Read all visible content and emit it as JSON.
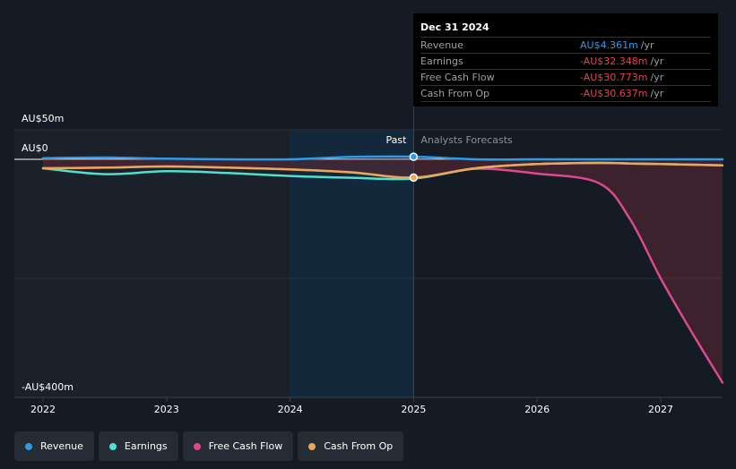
{
  "chart_data": {
    "type": "line",
    "y_axis_labels": [
      "AU$50m",
      "AU$0",
      "-AU$400m"
    ],
    "ylim": [
      -400,
      50
    ],
    "x_ticks": [
      "2022",
      "2023",
      "2024",
      "2025",
      "2026",
      "2027"
    ],
    "region_labels": {
      "past": "Past",
      "forecast": "Analysts Forecasts"
    },
    "divider_x": 2025,
    "x": [
      2022,
      2022.5,
      2023,
      2023.5,
      2024,
      2024.5,
      2025,
      2025.5,
      2026,
      2026.5,
      2026.75,
      2027,
      2027.25,
      2027.5
    ],
    "series": [
      {
        "name": "Revenue",
        "color": "#2f9be8",
        "values": [
          2,
          3,
          1,
          0,
          0,
          4,
          4.361,
          0,
          0,
          0,
          0,
          0,
          0,
          0
        ]
      },
      {
        "name": "Earnings",
        "color": "#4fe0d0",
        "values": [
          -15,
          -25,
          -20,
          -23,
          -28,
          -31,
          -32.348,
          -15,
          -8,
          -6,
          -7,
          -8,
          -9,
          -10
        ]
      },
      {
        "name": "Free Cash Flow",
        "color": "#d94b8e",
        "values": [
          -15,
          -14,
          -12,
          -14,
          -17,
          -22,
          -30.773,
          -16,
          -24,
          -40,
          -100,
          -200,
          -290,
          -375
        ]
      },
      {
        "name": "Cash From Op",
        "color": "#e8a85a",
        "values": [
          -15,
          -14,
          -12,
          -14,
          -17,
          -22,
          -30.637,
          -15,
          -8,
          -6,
          -7,
          -8,
          -9,
          -10
        ]
      }
    ]
  },
  "tooltip": {
    "date": "Dec 31 2024",
    "rows": [
      {
        "label": "Revenue",
        "value": "AU$4.361m",
        "unit": "/yr",
        "color": "#2f9be8"
      },
      {
        "label": "Earnings",
        "value": "-AU$32.348m",
        "unit": "/yr",
        "color": "#e8414a"
      },
      {
        "label": "Free Cash Flow",
        "value": "-AU$30.773m",
        "unit": "/yr",
        "color": "#e8414a"
      },
      {
        "label": "Cash From Op",
        "value": "-AU$30.637m",
        "unit": "/yr",
        "color": "#e8414a"
      }
    ]
  },
  "legend": [
    {
      "label": "Revenue",
      "color": "#2f9be8"
    },
    {
      "label": "Earnings",
      "color": "#4fe0d0"
    },
    {
      "label": "Free Cash Flow",
      "color": "#d94b8e"
    },
    {
      "label": "Cash From Op",
      "color": "#e8a85a"
    }
  ]
}
